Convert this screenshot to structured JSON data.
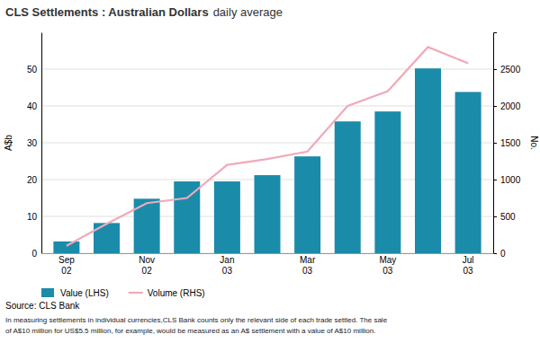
{
  "chart_data": {
    "type": "bar",
    "title": "CLS Settlements : Australian Dollars",
    "subtitle": "daily average",
    "y_label": "A$b",
    "y2_label": "No.",
    "categories": [
      "Sep\n02",
      null,
      "Nov\n02",
      null,
      "Jan\n03",
      null,
      "Mar\n03",
      null,
      "May\n03",
      null,
      "Jul\n03"
    ],
    "series": [
      {
        "name": "Value (LHS)",
        "type": "bar",
        "color": "#1b8baa",
        "values": [
          3.2,
          8.2,
          14.8,
          19.5,
          19.5,
          21.2,
          26.3,
          35.8,
          38.5,
          50.2,
          43.8
        ]
      },
      {
        "name": "Volume (RHS)",
        "type": "line",
        "axis": "y2",
        "color": "#f0aab8",
        "values": [
          100,
          400,
          680,
          750,
          1200,
          1280,
          1380,
          2000,
          2200,
          2800,
          2580
        ]
      }
    ],
    "ylim": [
      0,
      60
    ],
    "yticks": [
      0,
      10,
      20,
      30,
      40,
      50
    ],
    "y2lim": [
      0,
      3000
    ],
    "y2ticks": [
      0,
      500,
      1000,
      1500,
      2000,
      2500
    ],
    "grid": true,
    "legend": "bottom",
    "annotations": [
      "Source: CLS Bank",
      "In measuring settlements in individual currencies,CLS Bank counts only the relevant side of each trade settled. The sale",
      "of A$10 million for US$5.5 million, for example, would be measured as an A$ settlement with a value of A$10 million."
    ]
  }
}
